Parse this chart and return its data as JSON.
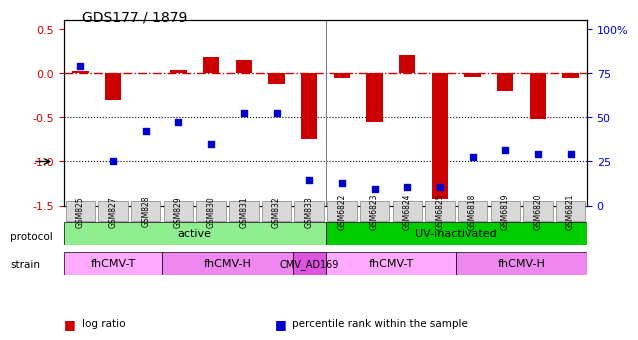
{
  "title": "GDS177 / 1879",
  "samples": [
    "GSM825",
    "GSM827",
    "GSM828",
    "GSM829",
    "GSM830",
    "GSM831",
    "GSM832",
    "GSM833",
    "GSM6822",
    "GSM6823",
    "GSM6824",
    "GSM6825",
    "GSM6818",
    "GSM6819",
    "GSM6820",
    "GSM6821"
  ],
  "log_ratio": [
    0.02,
    -0.3,
    0.0,
    0.04,
    0.18,
    0.15,
    -0.12,
    -0.75,
    -0.05,
    -0.55,
    0.2,
    -1.42,
    -0.04,
    -0.2,
    -0.52,
    -0.05
  ],
  "percentile": [
    75,
    24,
    40,
    45,
    33,
    50,
    50,
    14,
    12,
    9,
    10,
    10,
    26,
    30,
    28,
    28
  ],
  "bar_color": "#cc0000",
  "dot_color": "#0000cc",
  "hline_color": "#cc0000",
  "hline_y": 0,
  "dotted_lines": [
    -0.5,
    -1.0
  ],
  "ylim": [
    -1.5,
    0.6
  ],
  "y_ticks_left": [
    0.5,
    0.0,
    -0.5,
    -1.0,
    -1.5
  ],
  "y_ticks_right": [
    100,
    75,
    50,
    25,
    0
  ],
  "y_ticks_right_vals": [
    0.5,
    0.0,
    -0.5,
    -1.0,
    -1.5
  ],
  "protocol_groups": [
    {
      "label": "active",
      "start": 0,
      "end": 7,
      "color": "#90ee90"
    },
    {
      "label": "UV-inactivated",
      "start": 8,
      "end": 15,
      "color": "#00cc00"
    }
  ],
  "strain_groups": [
    {
      "label": "fhCMV-T",
      "start": 0,
      "end": 2,
      "color": "#ffaaff"
    },
    {
      "label": "fhCMV-H",
      "start": 3,
      "end": 6,
      "color": "#ee88ee"
    },
    {
      "label": "CMV_AD169",
      "start": 7,
      "end": 7,
      "color": "#dd55dd"
    },
    {
      "label": "fhCMV-T",
      "start": 8,
      "end": 11,
      "color": "#ffaaff"
    },
    {
      "label": "fhCMV-H",
      "start": 12,
      "end": 15,
      "color": "#ee88ee"
    }
  ],
  "legend_items": [
    {
      "label": "log ratio",
      "color": "#cc0000"
    },
    {
      "label": "percentile rank within the sample",
      "color": "#0000cc"
    }
  ]
}
